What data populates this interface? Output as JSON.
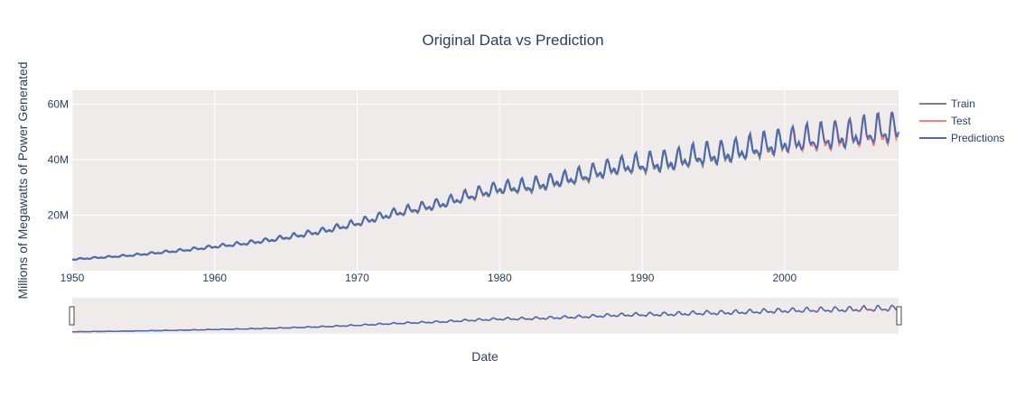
{
  "chart_data": {
    "type": "line",
    "title": "Original Data vs Prediction",
    "xlabel": "Date",
    "ylabel": "Millions of Megawatts of Power Generated",
    "xlim": [
      1950,
      2008
    ],
    "ylim": [
      0,
      65000000
    ],
    "x_ticks": [
      {
        "value": 1950,
        "label": "1950"
      },
      {
        "value": 1960,
        "label": "1960"
      },
      {
        "value": 1970,
        "label": "1970"
      },
      {
        "value": 1980,
        "label": "1980"
      },
      {
        "value": 1990,
        "label": "1990"
      },
      {
        "value": 2000,
        "label": "2000"
      }
    ],
    "y_ticks": [
      {
        "value": 20000000,
        "label": "20M"
      },
      {
        "value": 40000000,
        "label": "40M"
      },
      {
        "value": 60000000,
        "label": "60M"
      }
    ],
    "grid": true,
    "legend_placement": "top-right",
    "rangeslider": true,
    "series": [
      {
        "name": "Train",
        "color": "#808080",
        "x": [
          1950,
          1952,
          1954,
          1956,
          1958,
          1960,
          1962,
          1964,
          1966,
          1968,
          1970,
          1972,
          1974,
          1976,
          1978,
          1980,
          1982,
          1984,
          1986,
          1988,
          1990,
          1992,
          1994,
          1996,
          1998,
          2000
        ],
        "trend": [
          4000000,
          4700000,
          5400000,
          6400000,
          7400000,
          8600000,
          9700000,
          11000000,
          12700000,
          14600000,
          17000000,
          19800000,
          22000000,
          24000000,
          27000000,
          29500000,
          30000000,
          32000000,
          34000000,
          37000000,
          38000000,
          39000000,
          41000000,
          42000000,
          44000000,
          46000000
        ],
        "amplitude": [
          300000,
          350000,
          400000,
          500000,
          600000,
          700000,
          800000,
          900000,
          1100000,
          1300000,
          1500000,
          1800000,
          2000000,
          2200000,
          2500000,
          2800000,
          3000000,
          3200000,
          3400000,
          3800000,
          4200000,
          4600000,
          4800000,
          5000000,
          5200000,
          5400000
        ]
      },
      {
        "name": "Test",
        "color": "#fa8072",
        "x": [
          2000,
          2001,
          2002,
          2003,
          2004,
          2005,
          2006,
          2007,
          2008
        ],
        "trend": [
          46000000,
          46500000,
          47000000,
          47500000,
          48000000,
          48500000,
          49500000,
          50000000,
          50500000
        ],
        "amplitude": [
          5400000,
          5500000,
          5800000,
          6000000,
          6200000,
          6300000,
          6500000,
          6700000,
          6800000
        ]
      },
      {
        "name": "Predictions",
        "color": "#4c6baf",
        "x": [
          1950,
          1952,
          1954,
          1956,
          1958,
          1960,
          1962,
          1964,
          1966,
          1968,
          1970,
          1972,
          1974,
          1976,
          1978,
          1980,
          1982,
          1984,
          1986,
          1988,
          1990,
          1992,
          1994,
          1996,
          1998,
          2000,
          2002,
          2004,
          2006,
          2008
        ],
        "trend": [
          4100000,
          4800000,
          5500000,
          6500000,
          7500000,
          8700000,
          9800000,
          11200000,
          12900000,
          14800000,
          17200000,
          20000000,
          22300000,
          24300000,
          27300000,
          29800000,
          30500000,
          32500000,
          34500000,
          37300000,
          38500000,
          39500000,
          41500000,
          42500000,
          44500000,
          46500000,
          47500000,
          48500000,
          50000000,
          51000000
        ],
        "amplitude": [
          300000,
          350000,
          400000,
          500000,
          600000,
          700000,
          800000,
          900000,
          1100000,
          1300000,
          1500000,
          1800000,
          2000000,
          2200000,
          2500000,
          2800000,
          3000000,
          3200000,
          3400000,
          3800000,
          4200000,
          4600000,
          4800000,
          5000000,
          5200000,
          5400000,
          5800000,
          6200000,
          6500000,
          6800000
        ]
      }
    ]
  }
}
